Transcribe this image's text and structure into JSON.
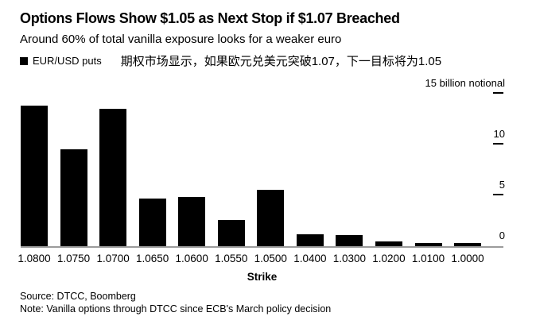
{
  "header": {
    "title": "Options Flows Show $1.05 as Next Stop if $1.07 Breached",
    "subtitle": "Around 60% of total vanilla exposure looks for a weaker euro",
    "legend": {
      "series_label": "EUR/USD puts",
      "annotation": "期权市场显示，如果欧元兑美元突破1.07，下一目标将为1.05"
    }
  },
  "chart_data": {
    "type": "bar",
    "title": "Options Flows Show $1.05 as Next Stop if $1.07 Breached",
    "subtitle": "Around 60% of total vanilla exposure looks for a weaker euro",
    "series_name": "EUR/USD puts",
    "categories": [
      "1.0800",
      "1.0750",
      "1.0700",
      "1.0650",
      "1.0600",
      "1.0550",
      "1.0500",
      "1.0400",
      "1.0300",
      "1.0200",
      "1.0100",
      "1.0000"
    ],
    "values": [
      13.8,
      9.5,
      13.5,
      4.7,
      4.8,
      2.6,
      5.5,
      1.2,
      1.1,
      0.5,
      0.3,
      0.3
    ],
    "xlabel": "Strike",
    "ylabel": "",
    "unit_label": "15 billion notional",
    "y_ticks": [
      0,
      5,
      10,
      15
    ],
    "ylim": [
      0,
      15
    ],
    "bar_color": "#000000",
    "axis_line_color": "#9b9b9b",
    "grid": false,
    "legend_position": "top-left",
    "y_axis_side": "right"
  },
  "footer": {
    "source": "Source: DTCC, Boomberg",
    "note": "Note: Vanilla options through DTCC since ECB's March policy decision"
  }
}
